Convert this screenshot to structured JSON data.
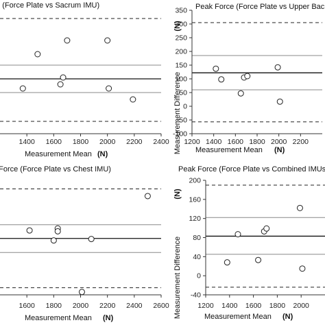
{
  "chart_data": [
    {
      "type": "scatter",
      "title": "Peak Force (Force Plate vs Sacrum IMU)",
      "xlabel": "Measurement Mean",
      "xlabel_unit": "(N)",
      "ylabel": "",
      "xlim": [
        1200,
        2400
      ],
      "ylim": [
        -150,
        300
      ],
      "x_ticks": [
        "1400",
        "1600",
        "1800",
        "2000",
        "2200",
        "2400"
      ],
      "y_ticks": [],
      "lines": {
        "upper_loa": 270,
        "upper_ci": 100,
        "mean": 50,
        "lower_ci": 0,
        "lower_loa": -105
      },
      "points": [
        {
          "x": 1370,
          "y": 15
        },
        {
          "x": 1480,
          "y": 140
        },
        {
          "x": 1650,
          "y": 30
        },
        {
          "x": 1670,
          "y": 55
        },
        {
          "x": 1700,
          "y": 190
        },
        {
          "x": 2000,
          "y": 190
        },
        {
          "x": 2010,
          "y": 15
        },
        {
          "x": 2190,
          "y": -25
        }
      ]
    },
    {
      "type": "scatter",
      "title": "Peak Force (Force Plate vs Upper Back IMU)",
      "xlabel": "Measurement Mean",
      "xlabel_unit": "(N)",
      "ylabel": "Measurement Difference",
      "ylabel_unit": "(N)",
      "xlim": [
        1200,
        2400
      ],
      "ylim": [
        -100,
        350
      ],
      "x_ticks": [
        "1200",
        "1400",
        "1600",
        "1800",
        "2000",
        "2200"
      ],
      "y_ticks": [
        "-100",
        "-50",
        "0",
        "50",
        "100",
        "150",
        "200",
        "250",
        "300",
        "350"
      ],
      "lines": {
        "upper_loa": 305,
        "upper_ci": 185,
        "mean": 122,
        "lower_ci": 60,
        "lower_loa": -57
      },
      "points": [
        {
          "x": 1420,
          "y": 137
        },
        {
          "x": 1470,
          "y": 98
        },
        {
          "x": 1650,
          "y": 47
        },
        {
          "x": 1680,
          "y": 105
        },
        {
          "x": 1710,
          "y": 110
        },
        {
          "x": 1990,
          "y": 142
        },
        {
          "x": 2010,
          "y": 17
        }
      ]
    },
    {
      "type": "scatter",
      "title": "Peak Force (Force Plate vs Chest IMU)",
      "xlabel": "Measurement Mean",
      "xlabel_unit": "(N)",
      "ylabel": "",
      "xlim": [
        1400,
        2600
      ],
      "ylim": [
        -100,
        300
      ],
      "x_ticks": [
        "1600",
        "1800",
        "2000",
        "2200",
        "2400",
        "2600"
      ],
      "y_ticks": [],
      "lines": {
        "upper_loa": 270,
        "upper_ci": 145,
        "mean": 97,
        "lower_ci": 48,
        "lower_loa": -75
      },
      "points": [
        {
          "x": 1620,
          "y": 125
        },
        {
          "x": 1800,
          "y": 90
        },
        {
          "x": 1830,
          "y": 132
        },
        {
          "x": 1830,
          "y": 122
        },
        {
          "x": 2010,
          "y": -90
        },
        {
          "x": 2080,
          "y": 95
        },
        {
          "x": 2500,
          "y": 245
        }
      ]
    },
    {
      "type": "scatter",
      "title": "Peak Force (Force Plate vs Combined IMUs)",
      "xlabel": "Measurement Mean",
      "xlabel_unit": "(N)",
      "ylabel": "Measurement Difference",
      "ylabel_unit": "(N)",
      "xlim": [
        1200,
        2200
      ],
      "ylim": [
        -40,
        200
      ],
      "x_ticks": [
        "1200",
        "1400",
        "1600",
        "1800",
        "2000"
      ],
      "y_ticks": [
        "-40",
        "0",
        "40",
        "80",
        "120",
        "160",
        "200"
      ],
      "lines": {
        "upper_loa": 190,
        "upper_ci": 122,
        "mean": 83,
        "lower_ci": 45,
        "lower_loa": -24
      },
      "points": [
        {
          "x": 1380,
          "y": 28
        },
        {
          "x": 1470,
          "y": 87
        },
        {
          "x": 1640,
          "y": 33
        },
        {
          "x": 1690,
          "y": 93
        },
        {
          "x": 1710,
          "y": 99
        },
        {
          "x": 1990,
          "y": 142
        },
        {
          "x": 2010,
          "y": 15
        }
      ]
    }
  ]
}
